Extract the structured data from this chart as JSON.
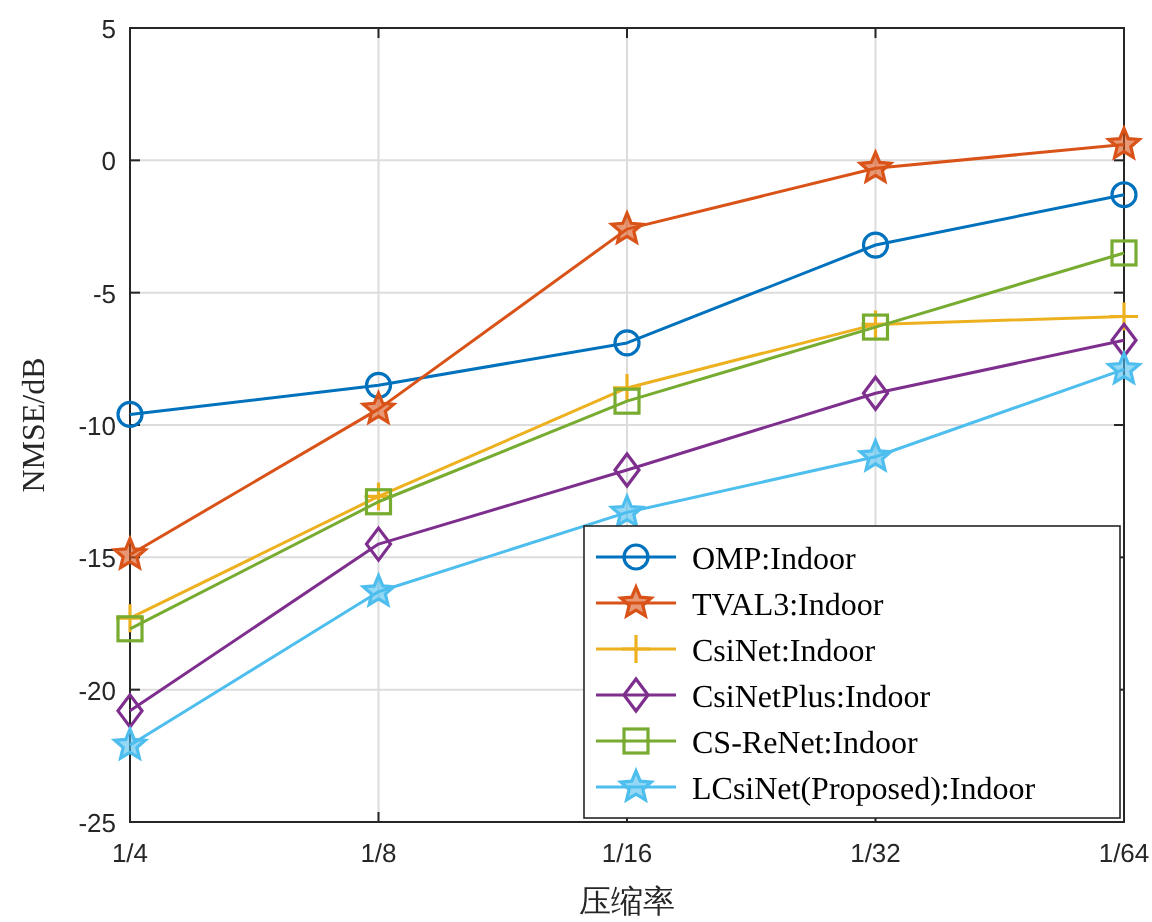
{
  "chart_data": {
    "type": "line",
    "xlabel": "压缩率",
    "ylabel": "NMSE/dB",
    "categories": [
      "1/4",
      "1/8",
      "1/16",
      "1/32",
      "1/64"
    ],
    "ylim": [
      -25,
      5
    ],
    "yticks": [
      -25,
      -20,
      -15,
      -10,
      -5,
      0,
      5
    ],
    "grid": true,
    "legend": "bottom right",
    "series": [
      {
        "name": "OMP:Indoor",
        "color": "#0072bd",
        "marker": "circle",
        "values": [
          -9.6,
          -8.5,
          -6.9,
          -3.2,
          -1.3
        ]
      },
      {
        "name": "TVAL3:Indoor",
        "color": "#d95319",
        "marker": "star",
        "values": [
          -14.9,
          -9.4,
          -2.6,
          -0.3,
          0.6
        ]
      },
      {
        "name": "CsiNet:Indoor",
        "color": "#edb120",
        "marker": "cross",
        "values": [
          -17.3,
          -12.7,
          -8.6,
          -6.2,
          -5.9
        ]
      },
      {
        "name": "CsiNetPlus:Indoor",
        "color": "#7e2f8e",
        "marker": "diamond",
        "values": [
          -20.8,
          -14.5,
          -11.7,
          -8.8,
          -6.8
        ]
      },
      {
        "name": "CS-ReNet:Indoor",
        "color": "#77ac30",
        "marker": "square",
        "values": [
          -17.7,
          -12.9,
          -9.1,
          -6.3,
          -3.5
        ]
      },
      {
        "name": "LCsiNet(Proposed):Indoor",
        "color": "#4dbeee",
        "marker": "star",
        "values": [
          -22.1,
          -16.3,
          -13.3,
          -11.2,
          -7.9
        ]
      }
    ]
  }
}
